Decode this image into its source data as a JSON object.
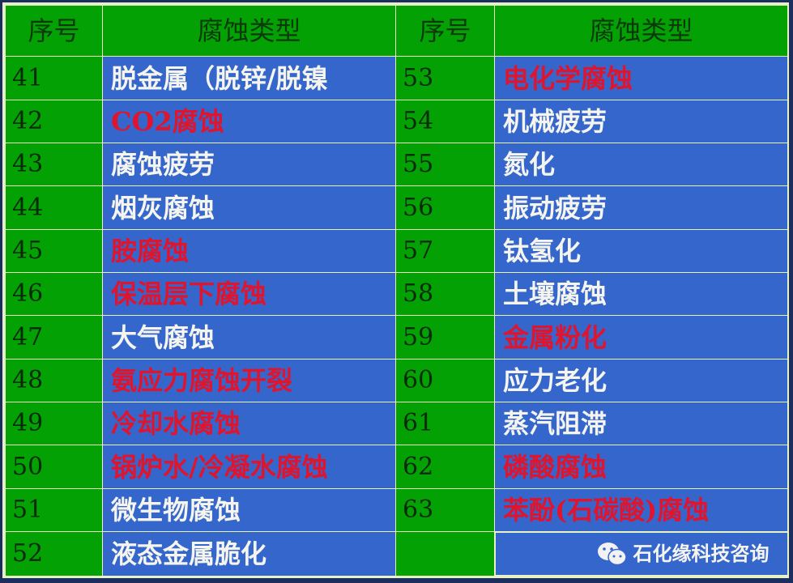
{
  "header": {
    "col_num": "序号",
    "col_type": "腐蚀类型"
  },
  "colors": {
    "green": "#04a104",
    "blue": "#3566cc",
    "red": "#e0142c",
    "white": "#f5f5ee"
  },
  "rows": [
    {
      "left": {
        "num": "41",
        "type": "脱金属（脱锌/脱镍",
        "red": false
      },
      "right": {
        "num": "53",
        "type": "电化学腐蚀",
        "red": true
      }
    },
    {
      "left": {
        "num": "42",
        "type": "CO2腐蚀",
        "red": true
      },
      "right": {
        "num": "54",
        "type": "机械疲劳",
        "red": false
      }
    },
    {
      "left": {
        "num": "43",
        "type": "腐蚀疲劳",
        "red": false
      },
      "right": {
        "num": "55",
        "type": "氮化",
        "red": false
      }
    },
    {
      "left": {
        "num": "44",
        "type": "烟灰腐蚀",
        "red": false
      },
      "right": {
        "num": "56",
        "type": "振动疲劳",
        "red": false
      }
    },
    {
      "left": {
        "num": "45",
        "type": "胺腐蚀",
        "red": true
      },
      "right": {
        "num": "57",
        "type": "钛氢化",
        "red": false
      }
    },
    {
      "left": {
        "num": "46",
        "type": "保温层下腐蚀",
        "red": true
      },
      "right": {
        "num": "58",
        "type": "土壤腐蚀",
        "red": false
      }
    },
    {
      "left": {
        "num": "47",
        "type": "大气腐蚀",
        "red": false
      },
      "right": {
        "num": "59",
        "type": "金属粉化",
        "red": true
      }
    },
    {
      "left": {
        "num": "48",
        "type": "氨应力腐蚀开裂",
        "red": true
      },
      "right": {
        "num": "60",
        "type": "应力老化",
        "red": false
      }
    },
    {
      "left": {
        "num": "49",
        "type": "冷却水腐蚀",
        "red": true
      },
      "right": {
        "num": "61",
        "type": "蒸汽阻滞",
        "red": false
      }
    },
    {
      "left": {
        "num": "50",
        "type": "锅炉水/冷凝水腐蚀",
        "red": true
      },
      "right": {
        "num": "62",
        "type": "磷酸腐蚀",
        "red": true
      }
    },
    {
      "left": {
        "num": "51",
        "type": "微生物腐蚀",
        "red": false
      },
      "right": {
        "num": "63",
        "type": "苯酚(石碳酸)腐蚀",
        "red": true
      }
    },
    {
      "left": {
        "num": "52",
        "type": "液态金属脆化",
        "red": false
      },
      "right": {
        "num": "",
        "type": "",
        "red": false
      }
    }
  ],
  "watermark": {
    "icon": "wechat-icon",
    "text": "石化缘科技咨询"
  }
}
